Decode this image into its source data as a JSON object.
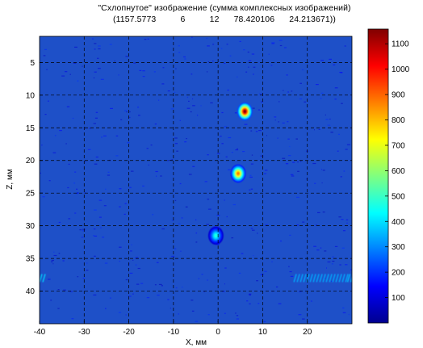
{
  "chart_data": {
    "type": "heatmap",
    "title": "\"Схлопнутое\" изображение (сумма комплексных изображений)",
    "subtitle": "(1157.5773          6          12      78.420106      24.213671))",
    "xlabel": "X, мм",
    "ylabel": "Z, мм",
    "xlim": [
      -40,
      30
    ],
    "ylim": [
      45,
      1
    ],
    "y_axis_reversed": true,
    "xticks": [
      -40,
      -30,
      -20,
      -10,
      0,
      10,
      20
    ],
    "yticks": [
      5,
      10,
      15,
      20,
      25,
      30,
      35,
      40
    ],
    "grid": true,
    "grid_style": "dashed",
    "colormap": "jet",
    "clim": [
      0,
      1158
    ],
    "colorbar_ticks": [
      100,
      200,
      300,
      400,
      500,
      600,
      700,
      800,
      900,
      1000,
      1100
    ],
    "background_level": 60,
    "hotspots": [
      {
        "x": 6,
        "z": 12.5,
        "peak": 1158
      },
      {
        "x": 4.5,
        "z": 22,
        "peak": 880
      },
      {
        "x": -0.5,
        "z": 31.5,
        "peak": 480
      }
    ],
    "streaks": [
      {
        "x_from": 17,
        "x_to": 29,
        "z": 38,
        "level": 340
      },
      {
        "x_from": -40,
        "x_to": -39,
        "z": 38,
        "level": 380
      },
      {
        "x_from": 29,
        "x_to": 30,
        "z": 38,
        "level": 360
      }
    ]
  }
}
